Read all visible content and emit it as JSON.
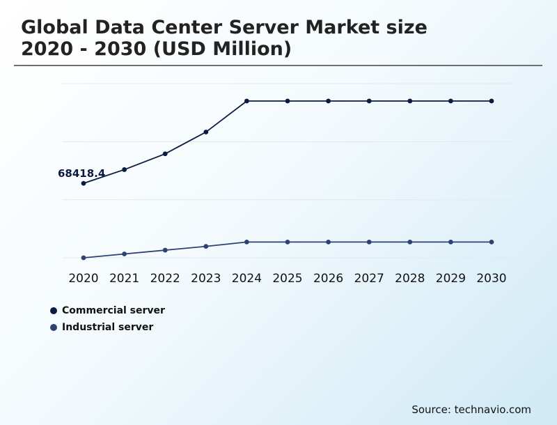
{
  "title": {
    "line1": "Global Data Center Server Market size",
    "line2": "2020 - 2030 (USD Million)"
  },
  "source": "Source: technavio.com",
  "colors": {
    "commercial": "#0b1a3d",
    "industrial": "#2d4273",
    "grid": "#e4e8ec",
    "rule": "#6f6f6f"
  },
  "chart_data": {
    "type": "line",
    "categories": [
      "2020",
      "2021",
      "2022",
      "2023",
      "2024",
      "2025",
      "2026",
      "2027",
      "2028",
      "2029",
      "2030"
    ],
    "series": [
      {
        "name": "Commercial server",
        "values": [
          68418.4,
          81000,
          95500,
          115500,
          144000,
          144000,
          144000,
          144000,
          144000,
          144000,
          144000
        ],
        "point_label": "68418.4"
      },
      {
        "name": "Industrial server",
        "values": [
          0,
          3500,
          7000,
          10500,
          14500,
          14500,
          14500,
          14500,
          14500,
          14500,
          14500
        ]
      }
    ],
    "ylim": [
      0,
      160000
    ],
    "grid": true,
    "y_tick_labels_shown": false,
    "legend_position": "bottom-left"
  }
}
